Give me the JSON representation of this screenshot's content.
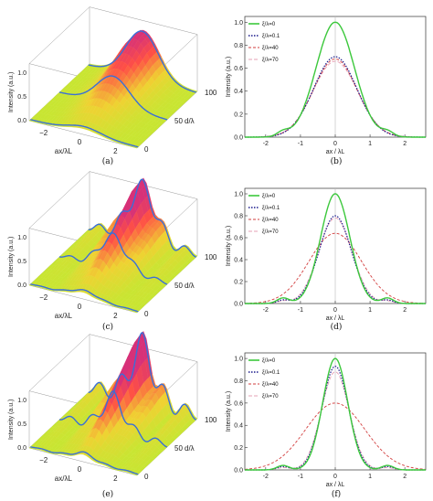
{
  "panels": [
    {
      "id": "a",
      "caption": "(a)"
    },
    {
      "id": "b",
      "caption": "(b)"
    },
    {
      "id": "c",
      "caption": "(c)"
    },
    {
      "id": "d",
      "caption": "(d)"
    },
    {
      "id": "e",
      "caption": "(e)"
    },
    {
      "id": "f",
      "caption": "(f)"
    }
  ],
  "surface_labels": {
    "zlabel": "Intensity (a.u.)",
    "xlabel": "ax/λL",
    "ylabel": "d/λ",
    "z_ticks": [
      "0.0",
      "0.5",
      "1.0"
    ],
    "x_ticks": [
      "−2",
      "0",
      "2"
    ],
    "y_ticks": [
      "0",
      "50",
      "100"
    ]
  },
  "legend": [
    "ξ/λ=0",
    "ξ/λ=0.1",
    "ξ/λ=40",
    "ξ/λ=70"
  ],
  "colors": {
    "s0": "#3cc83c",
    "s1": "#1a1a8c",
    "s2": "#d23c3c",
    "s3": "#e6a0b4",
    "blue_line": "#3a6fd8",
    "lime": "#c8e632",
    "red": "#ff5050"
  },
  "chart_data": [
    {
      "type": "line",
      "panel": "b",
      "xlabel": "ax / λL",
      "ylabel": "Intensity (a.u.)",
      "xlim": [
        -2.6,
        2.6
      ],
      "ylim": [
        0,
        1.05
      ],
      "x_ticks": [
        "-2",
        "-1",
        "0",
        "1",
        "2"
      ],
      "y_ticks": [
        "0.0",
        "0.2",
        "0.4",
        "0.6",
        "0.8",
        "1.0"
      ],
      "series": [
        {
          "name": "ξ/λ=0",
          "peak": 1.0,
          "width": 0.55,
          "side": 0.04
        },
        {
          "name": "ξ/λ=0.1",
          "peak": 0.7,
          "width": 0.62,
          "side": 0.0
        },
        {
          "name": "ξ/λ=40",
          "peak": 0.68,
          "width": 0.63,
          "side": 0.0
        },
        {
          "name": "ξ/λ=70",
          "peak": 0.66,
          "width": 0.64,
          "side": 0.0
        }
      ]
    },
    {
      "type": "line",
      "panel": "d",
      "xlabel": "ax / λL",
      "ylabel": "Intensity (a.u.)",
      "xlim": [
        -2.6,
        2.6
      ],
      "ylim": [
        0,
        1.05
      ],
      "x_ticks": [
        "-2",
        "-1",
        "0",
        "1",
        "2"
      ],
      "y_ticks": [
        "0.0",
        "0.2",
        "0.4",
        "0.6",
        "0.8",
        "1.0"
      ],
      "series": [
        {
          "name": "ξ/λ=0",
          "peak": 1.0,
          "width": 0.42,
          "side": 0.05
        },
        {
          "name": "ξ/λ=0.1",
          "peak": 0.8,
          "width": 0.46,
          "side": 0.03
        },
        {
          "name": "ξ/λ=40",
          "peak": 0.64,
          "width": 0.75,
          "side": 0.0
        },
        {
          "name": "ξ/λ=70",
          "peak": 0.78,
          "width": 0.48,
          "side": 0.02
        }
      ]
    },
    {
      "type": "line",
      "panel": "f",
      "xlabel": "ax / λL",
      "ylabel": "Intensity (a.u.)",
      "xlim": [
        -2.6,
        2.6
      ],
      "ylim": [
        0,
        1.05
      ],
      "x_ticks": [
        "-2",
        "-1",
        "0",
        "1",
        "2"
      ],
      "y_ticks": [
        "0.0",
        "0.2",
        "0.4",
        "0.6",
        "0.8",
        "1.0"
      ],
      "series": [
        {
          "name": "ξ/λ=0",
          "peak": 1.0,
          "width": 0.36,
          "side": 0.04
        },
        {
          "name": "ξ/λ=0.1",
          "peak": 0.93,
          "width": 0.38,
          "side": 0.03
        },
        {
          "name": "ξ/λ=40",
          "peak": 0.6,
          "width": 0.85,
          "side": 0.0
        },
        {
          "name": "ξ/λ=70",
          "peak": 0.88,
          "width": 0.4,
          "side": 0.02
        }
      ]
    }
  ]
}
